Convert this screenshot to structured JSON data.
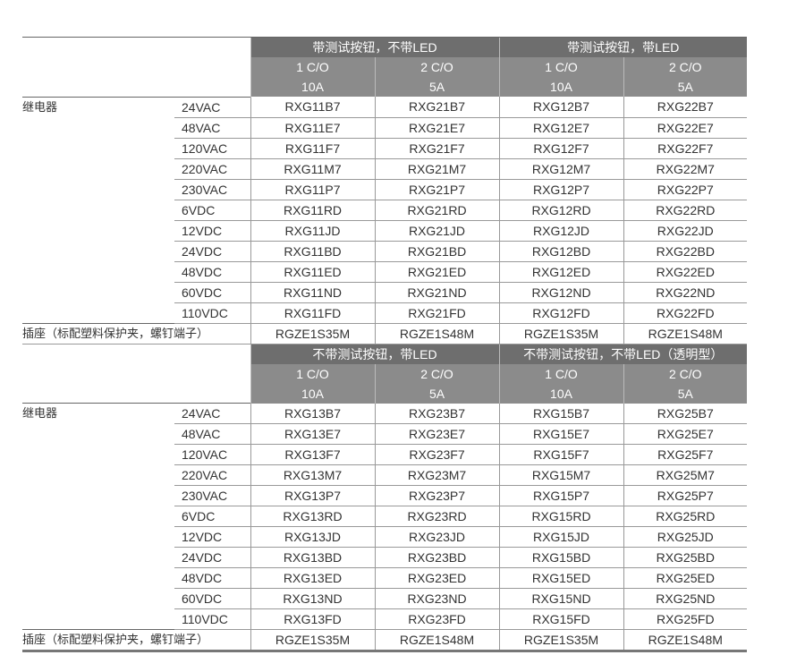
{
  "row_label_relay": "继电器",
  "row_label_socket": "插座（标配塑料保护夹，螺钉端子）",
  "voltages": [
    "24VAC",
    "48VAC",
    "120VAC",
    "220VAC",
    "230VAC",
    "6VDC",
    "12VDC",
    "24VDC",
    "48VDC",
    "60VDC",
    "110VDC"
  ],
  "sections": [
    {
      "groups": [
        "带测试按钮，不带LED",
        "带测试按钮，带LED"
      ],
      "columns": [
        {
          "contacts": "1 C/O",
          "current": "10A"
        },
        {
          "contacts": "2 C/O",
          "current": "5A"
        },
        {
          "contacts": "1 C/O",
          "current": "10A"
        },
        {
          "contacts": "2 C/O",
          "current": "5A"
        }
      ],
      "prefixes": [
        "RXG11",
        "RXG21",
        "RXG12",
        "RXG22"
      ],
      "sockets": [
        "RGZE1S35M",
        "RGZE1S48M",
        "RGZE1S35M",
        "RGZE1S48M"
      ]
    },
    {
      "groups": [
        "不带测试按钮，带LED",
        "不带测试按钮，不带LED（透明型）"
      ],
      "columns": [
        {
          "contacts": "1 C/O",
          "current": "10A"
        },
        {
          "contacts": "2 C/O",
          "current": "5A"
        },
        {
          "contacts": "1 C/O",
          "current": "10A"
        },
        {
          "contacts": "2 C/O",
          "current": "5A"
        }
      ],
      "prefixes": [
        "RXG13",
        "RXG23",
        "RXG15",
        "RXG25"
      ],
      "sockets": [
        "RGZE1S35M",
        "RGZE1S48M",
        "RGZE1S35M",
        "RGZE1S48M"
      ]
    }
  ],
  "voltage_codes": [
    "B7",
    "E7",
    "F7",
    "M7",
    "P7",
    "RD",
    "JD",
    "BD",
    "ED",
    "ND",
    "FD"
  ],
  "cells": [
    [
      [
        "RXG11B7",
        "RXG21B7",
        "RXG12B7",
        "RXG22B7"
      ],
      [
        "RXG11E7",
        "RXG21E7",
        "RXG12E7",
        "RXG22E7"
      ],
      [
        "RXG11F7",
        "RXG21F7",
        "RXG12F7",
        "RXG22F7"
      ],
      [
        "RXG11M7",
        "RXG21M7",
        "RXG12M7",
        "RXG22M7"
      ],
      [
        "RXG11P7",
        "RXG21P7",
        "RXG12P7",
        "RXG22P7"
      ],
      [
        "RXG11RD",
        "RXG21RD",
        "RXG12RD",
        "RXG22RD"
      ],
      [
        "RXG11JD",
        "RXG21JD",
        "RXG12JD",
        "RXG22JD"
      ],
      [
        "RXG11BD",
        "RXG21BD",
        "RXG12BD",
        "RXG22BD"
      ],
      [
        "RXG11ED",
        "RXG21ED",
        "RXG12ED",
        "RXG22ED"
      ],
      [
        "RXG11ND",
        "RXG21ND",
        "RXG12ND",
        "RXG22ND"
      ],
      [
        "RXG11FD",
        "RXG21FD",
        "RXG12FD",
        "RXG22FD"
      ]
    ],
    [
      [
        "RXG13B7",
        "RXG23B7",
        "RXG15B7",
        "RXG25B7"
      ],
      [
        "RXG13E7",
        "RXG23E7",
        "RXG15E7",
        "RXG25E7"
      ],
      [
        "RXG13F7",
        "RXG23F7",
        "RXG15F7",
        "RXG25F7"
      ],
      [
        "RXG13M7",
        "RXG23M7",
        "RXG15M7",
        "RXG25M7"
      ],
      [
        "RXG13P7",
        "RXG23P7",
        "RXG15P7",
        "RXG25P7"
      ],
      [
        "RXG13RD",
        "RXG23RD",
        "RXG15RD",
        "RXG25RD"
      ],
      [
        "RXG13JD",
        "RXG23JD",
        "RXG15JD",
        "RXG25JD"
      ],
      [
        "RXG13BD",
        "RXG23BD",
        "RXG15BD",
        "RXG25BD"
      ],
      [
        "RXG13ED",
        "RXG23ED",
        "RXG15ED",
        "RXG25ED"
      ],
      [
        "RXG13ND",
        "RXG23ND",
        "RXG15ND",
        "RXG25ND"
      ],
      [
        "RXG13FD",
        "RXG23FD",
        "RXG15FD",
        "RXG25FD"
      ]
    ]
  ]
}
